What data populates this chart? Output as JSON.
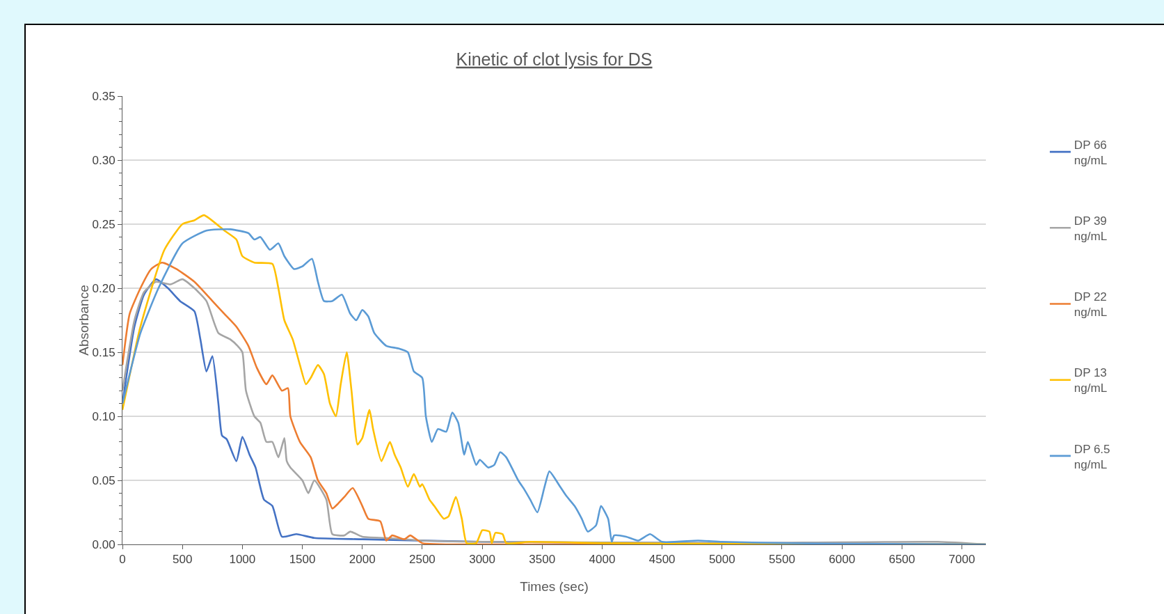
{
  "chart_data": {
    "type": "line",
    "title": "Kinetic of clot lysis for DS",
    "xlabel": "Times (sec)",
    "ylabel": "Absorbance",
    "xlim": [
      0,
      7200
    ],
    "xticks": [
      0,
      500,
      1000,
      1500,
      2000,
      2500,
      3000,
      3500,
      4000,
      4500,
      5000,
      5500,
      6000,
      6500,
      7000
    ],
    "ylim": [
      0,
      0.35
    ],
    "yticks": [
      {
        "value": 0,
        "label": "0.00"
      },
      {
        "value": 0.05,
        "label": "0.05"
      },
      {
        "value": 0.1,
        "label": "0.10"
      },
      {
        "value": 0.15,
        "label": "0.15"
      },
      {
        "value": 0.2,
        "label": "0.20"
      },
      {
        "value": 0.25,
        "label": "0.25"
      },
      {
        "value": 0.3,
        "label": "0.30"
      },
      {
        "value": 0.35,
        "label": "0.35"
      }
    ],
    "grid": "y",
    "legend": "right",
    "marker": "none",
    "line_style": "solid",
    "series": [
      {
        "name": "DP 66 ng/mL",
        "color": "#4472c4",
        "x": [
          0,
          100,
          180,
          280,
          380,
          480,
          600,
          650,
          700,
          750,
          800,
          830,
          870,
          950,
          1000,
          1060,
          1110,
          1180,
          1250,
          1330,
          1450,
          1600,
          2000,
          3000,
          5000,
          7200
        ],
        "values": [
          0.11,
          0.17,
          0.195,
          0.207,
          0.2,
          0.19,
          0.182,
          0.16,
          0.135,
          0.147,
          0.11,
          0.085,
          0.082,
          0.065,
          0.084,
          0.07,
          0.06,
          0.035,
          0.03,
          0.006,
          0.008,
          0.005,
          0.004,
          0.002,
          0.001,
          0
        ]
      },
      {
        "name": "DP 39 ng/mL",
        "color": "#a5a5a5",
        "x": [
          0,
          100,
          180,
          280,
          400,
          500,
          600,
          700,
          800,
          900,
          960,
          1000,
          1030,
          1100,
          1150,
          1200,
          1250,
          1300,
          1350,
          1370,
          1400,
          1500,
          1550,
          1600,
          1700,
          1750,
          1850,
          1900,
          2000,
          2200,
          2500,
          3000,
          5000,
          6800,
          7200
        ],
        "values": [
          0.12,
          0.175,
          0.197,
          0.205,
          0.203,
          0.207,
          0.2,
          0.19,
          0.165,
          0.16,
          0.155,
          0.15,
          0.12,
          0.1,
          0.095,
          0.08,
          0.08,
          0.068,
          0.083,
          0.065,
          0.06,
          0.05,
          0.04,
          0.05,
          0.035,
          0.008,
          0.007,
          0.01,
          0.006,
          0.005,
          0.003,
          0.002,
          0.001,
          0.002,
          0
        ]
      },
      {
        "name": "DP 22 ng/mL",
        "color": "#ed7d31",
        "x": [
          0,
          60,
          150,
          240,
          330,
          450,
          600,
          750,
          850,
          950,
          1050,
          1120,
          1200,
          1250,
          1330,
          1380,
          1400,
          1480,
          1570,
          1630,
          1700,
          1750,
          1800,
          1850,
          1920,
          2000,
          2050,
          2150,
          2200,
          2250,
          2350,
          2400,
          2500,
          3000,
          7200
        ],
        "values": [
          0.14,
          0.18,
          0.2,
          0.215,
          0.22,
          0.215,
          0.205,
          0.19,
          0.18,
          0.17,
          0.155,
          0.138,
          0.125,
          0.132,
          0.12,
          0.122,
          0.1,
          0.08,
          0.068,
          0.05,
          0.04,
          0.028,
          0.032,
          0.037,
          0.044,
          0.03,
          0.02,
          0.018,
          0.003,
          0.007,
          0.004,
          0.007,
          0.001,
          0,
          0
        ]
      },
      {
        "name": "DP 13 ng/mL",
        "color": "#ffc000",
        "x": [
          0,
          150,
          350,
          500,
          600,
          680,
          850,
          950,
          1000,
          1100,
          1250,
          1300,
          1350,
          1420,
          1480,
          1530,
          1570,
          1630,
          1680,
          1730,
          1780,
          1820,
          1870,
          1910,
          1960,
          2000,
          2060,
          2090,
          2160,
          2230,
          2270,
          2320,
          2380,
          2430,
          2480,
          2500,
          2560,
          2600,
          2680,
          2720,
          2780,
          2830,
          2870,
          2950,
          3000,
          3060,
          3080,
          3110,
          3170,
          3200,
          3400,
          4000,
          5000,
          7200
        ],
        "values": [
          0.105,
          0.17,
          0.23,
          0.25,
          0.253,
          0.257,
          0.245,
          0.238,
          0.225,
          0.22,
          0.219,
          0.2,
          0.175,
          0.16,
          0.14,
          0.125,
          0.13,
          0.14,
          0.133,
          0.11,
          0.1,
          0.125,
          0.15,
          0.12,
          0.078,
          0.083,
          0.105,
          0.09,
          0.065,
          0.08,
          0.07,
          0.06,
          0.045,
          0.055,
          0.045,
          0.047,
          0.035,
          0.03,
          0.02,
          0.022,
          0.037,
          0.02,
          0.001,
          0.001,
          0.011,
          0.01,
          0.001,
          0.009,
          0.008,
          0.001,
          0.002,
          0.001,
          0.0005,
          0
        ]
      },
      {
        "name": "DP 6.5 ng/mL",
        "color": "#5b9bd5",
        "x": [
          0,
          150,
          300,
          500,
          700,
          900,
          1050,
          1100,
          1150,
          1230,
          1300,
          1350,
          1430,
          1500,
          1580,
          1630,
          1680,
          1750,
          1830,
          1900,
          1950,
          2000,
          2050,
          2100,
          2200,
          2300,
          2380,
          2430,
          2500,
          2530,
          2580,
          2630,
          2700,
          2750,
          2800,
          2850,
          2880,
          2950,
          2980,
          3050,
          3100,
          3150,
          3200,
          3300,
          3350,
          3400,
          3460,
          3520,
          3560,
          3650,
          3700,
          3770,
          3830,
          3880,
          3950,
          3990,
          4050,
          4080,
          4100,
          4200,
          4300,
          4400,
          4500,
          4800,
          5000,
          5500,
          6000,
          7200
        ],
        "values": [
          0.11,
          0.165,
          0.2,
          0.235,
          0.245,
          0.246,
          0.243,
          0.238,
          0.24,
          0.23,
          0.235,
          0.225,
          0.215,
          0.217,
          0.223,
          0.205,
          0.19,
          0.19,
          0.195,
          0.18,
          0.175,
          0.183,
          0.178,
          0.165,
          0.155,
          0.153,
          0.15,
          0.135,
          0.13,
          0.1,
          0.08,
          0.09,
          0.088,
          0.103,
          0.095,
          0.07,
          0.08,
          0.062,
          0.066,
          0.06,
          0.062,
          0.072,
          0.068,
          0.05,
          0.043,
          0.035,
          0.025,
          0.045,
          0.057,
          0.045,
          0.038,
          0.03,
          0.02,
          0.01,
          0.015,
          0.03,
          0.02,
          0.002,
          0.007,
          0.006,
          0.003,
          0.008,
          0.002,
          0.003,
          0.002,
          0.001,
          0.0005,
          0
        ]
      }
    ]
  }
}
